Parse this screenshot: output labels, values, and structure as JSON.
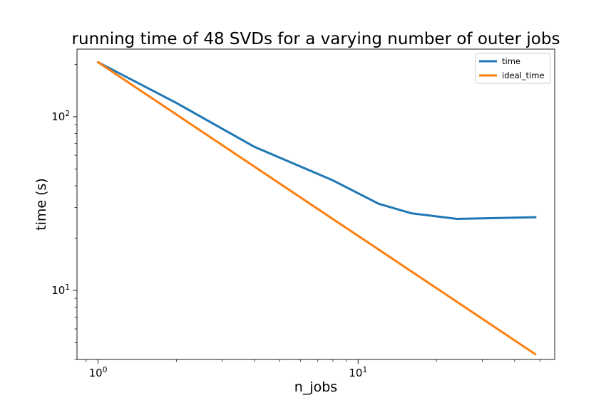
{
  "chart_data": {
    "type": "line",
    "title": "running time of 48 SVDs for a varying number of outer jobs",
    "xlabel": "n_jobs",
    "ylabel": "time (s)",
    "xscale": "log",
    "yscale": "log",
    "xlim": [
      0.83,
      57
    ],
    "ylim": [
      4.0,
      245
    ],
    "grid": false,
    "legend_position": "top-right",
    "x_ticks": [
      {
        "value": 1,
        "base": "10",
        "exp": "0"
      },
      {
        "value": 10,
        "base": "10",
        "exp": "1"
      }
    ],
    "y_ticks": [
      {
        "value": 10,
        "base": "10",
        "exp": "1"
      },
      {
        "value": 100,
        "base": "10",
        "exp": "2"
      }
    ],
    "series": [
      {
        "name": "time",
        "color": "#1f77b4",
        "x": [
          1,
          2,
          4,
          8,
          12,
          16,
          24,
          48
        ],
        "y": [
          206,
          120,
          67,
          43,
          31.5,
          27.8,
          25.8,
          26.4
        ]
      },
      {
        "name": "ideal_time",
        "color": "#ff7f0e",
        "x": [
          1,
          2,
          4,
          8,
          12,
          16,
          24,
          48
        ],
        "y": [
          206,
          103,
          51.5,
          25.75,
          17.17,
          12.88,
          8.58,
          4.29
        ]
      }
    ]
  }
}
